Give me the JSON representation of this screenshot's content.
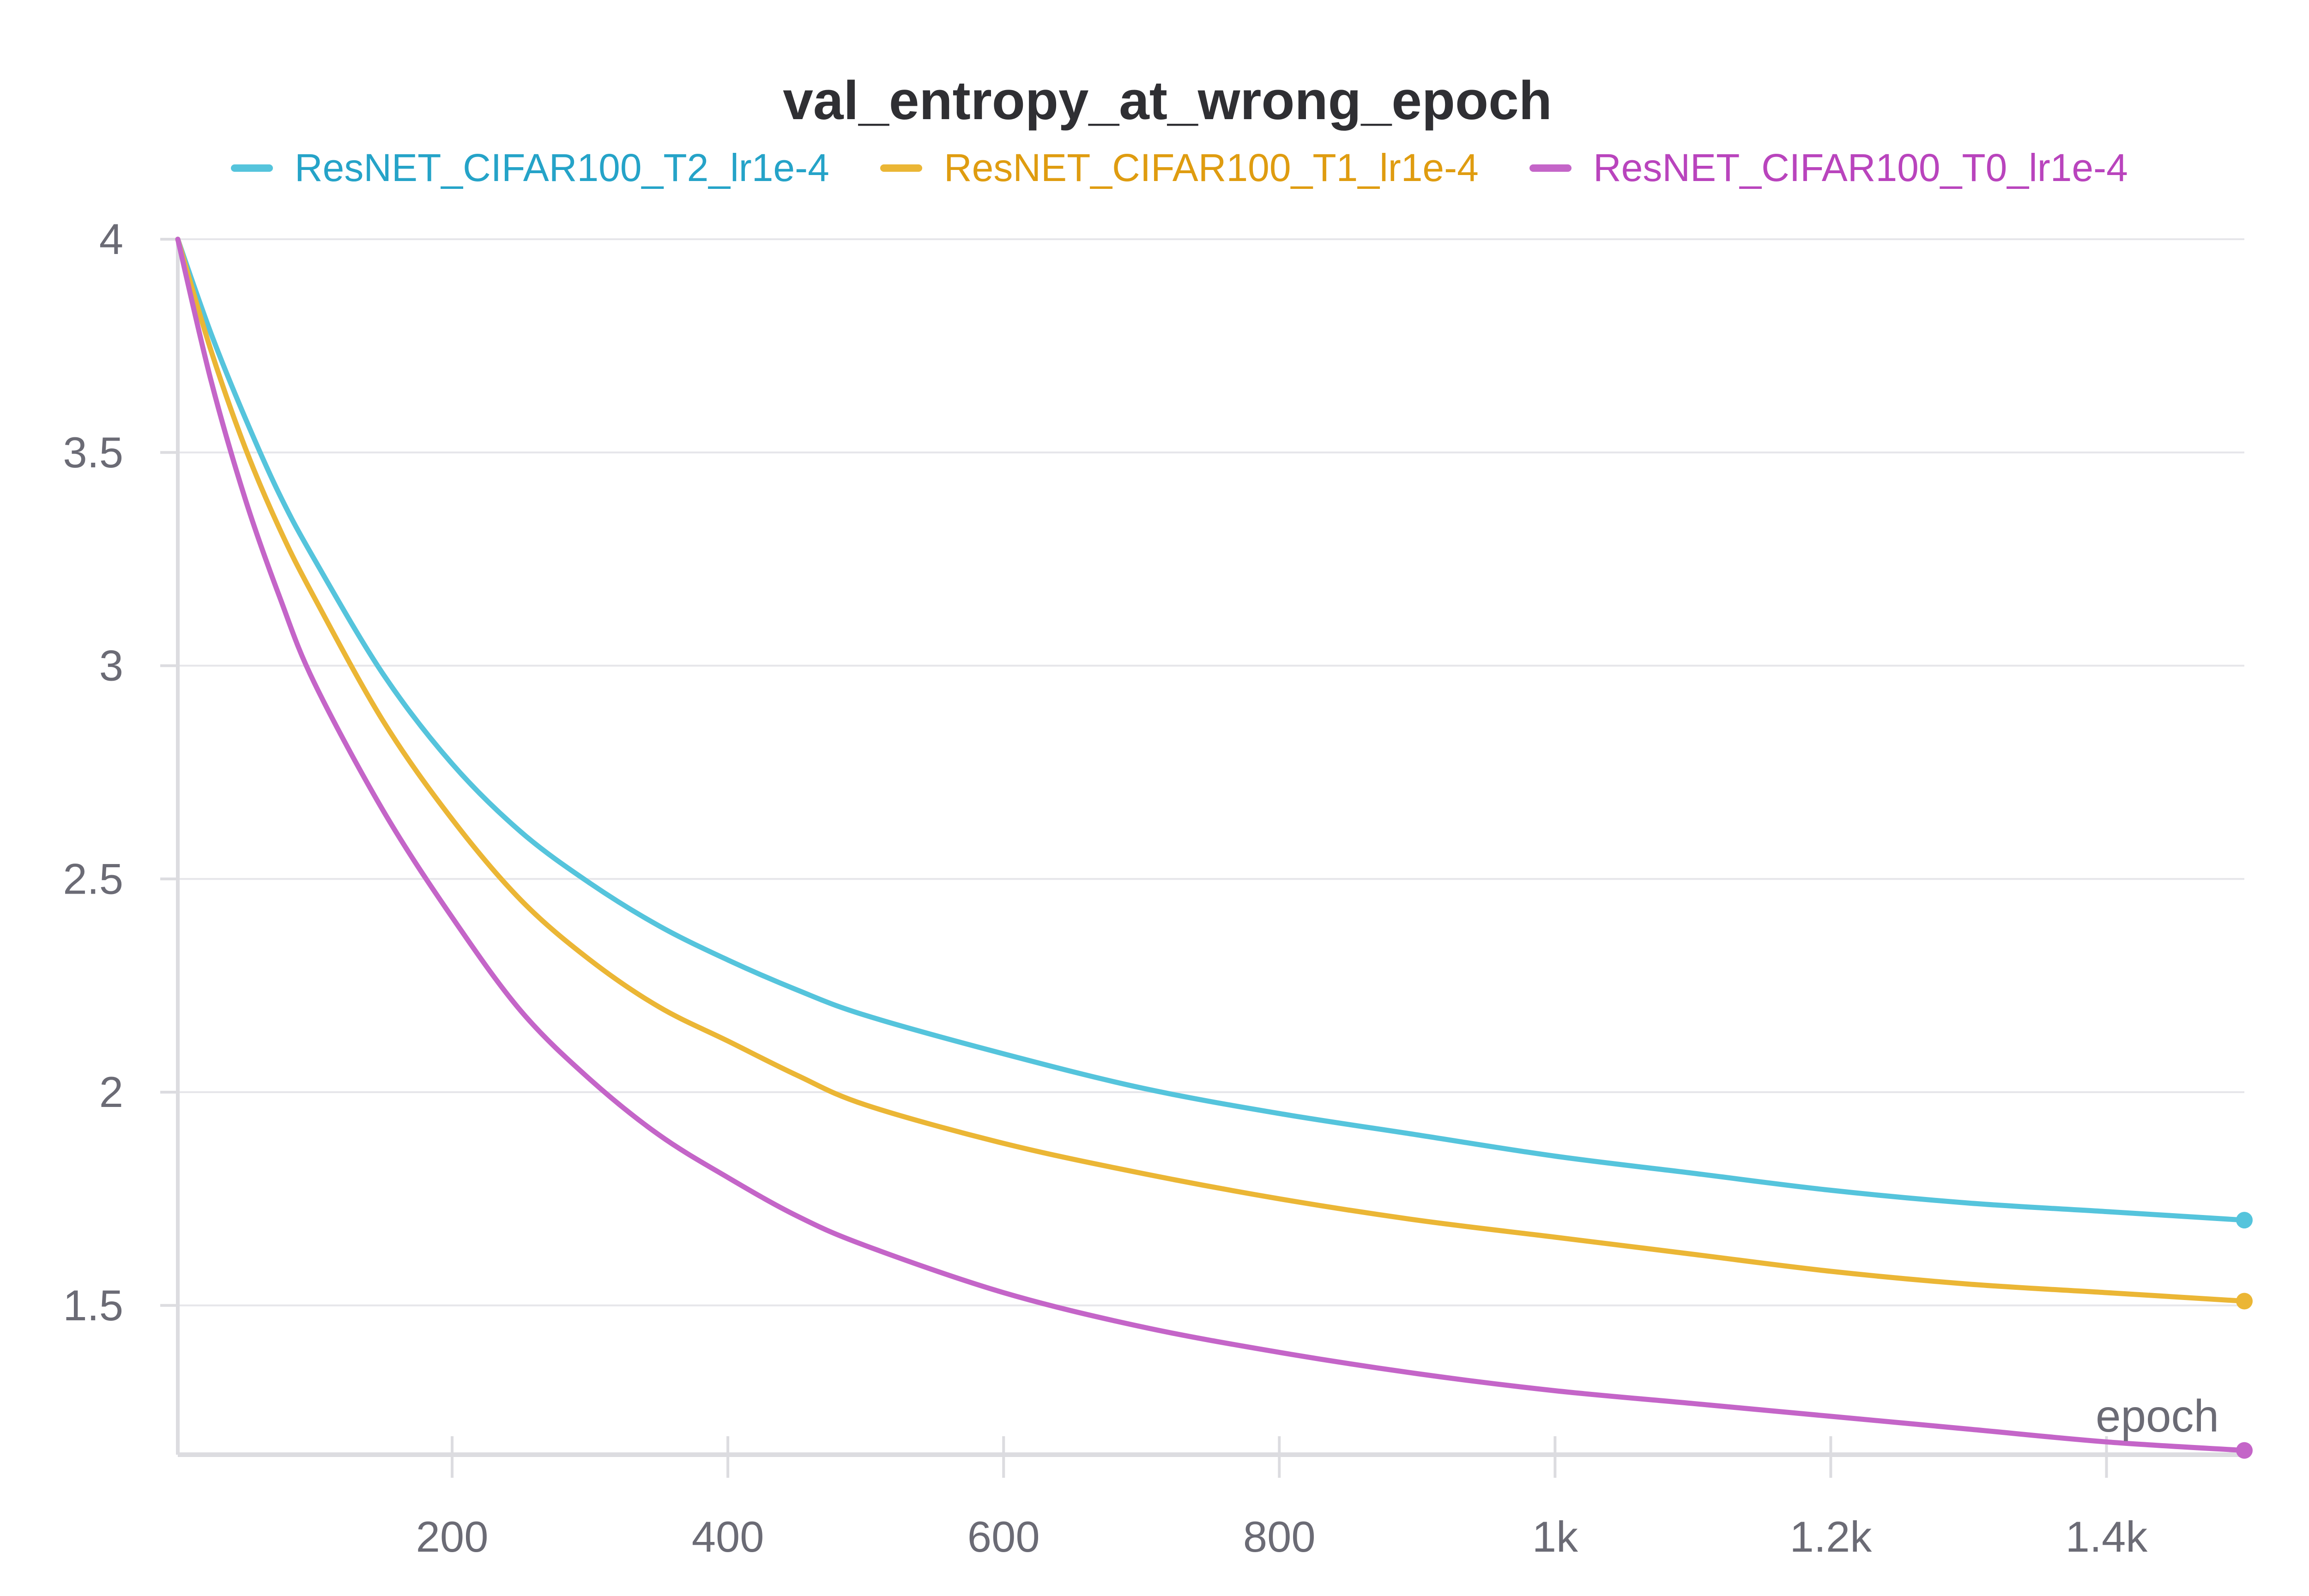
{
  "chart_data": {
    "type": "line",
    "title": "val_entropy_at_wrong_epoch",
    "xlabel": "epoch",
    "ylabel": "",
    "xlim": [
      1,
      1500
    ],
    "ylim": [
      1.15,
      4
    ],
    "x_ticks": [
      {
        "value": 200,
        "label": "200"
      },
      {
        "value": 400,
        "label": "400"
      },
      {
        "value": 600,
        "label": "600"
      },
      {
        "value": 800,
        "label": "800"
      },
      {
        "value": 1000,
        "label": "1k"
      },
      {
        "value": 1200,
        "label": "1.2k"
      },
      {
        "value": 1400,
        "label": "1.4k"
      }
    ],
    "y_ticks": [
      {
        "value": 4,
        "label": "4"
      },
      {
        "value": 3.5,
        "label": "3.5"
      },
      {
        "value": 3,
        "label": "3"
      },
      {
        "value": 2.5,
        "label": "2.5"
      },
      {
        "value": 2,
        "label": "2"
      },
      {
        "value": 1.5,
        "label": "1.5"
      }
    ],
    "grid": true,
    "legend_position": "top",
    "series": [
      {
        "name": "ResNET_CIFAR100_T2_lr1e-4",
        "color": "#55c4dc",
        "label_color": "#25a3c8",
        "x": [
          1,
          25,
          50,
          75,
          100,
          150,
          200,
          250,
          300,
          350,
          400,
          450,
          500,
          600,
          700,
          800,
          900,
          1000,
          1100,
          1200,
          1300,
          1400,
          1500
        ],
        "y": [
          4.0,
          3.78,
          3.58,
          3.4,
          3.25,
          2.98,
          2.77,
          2.61,
          2.49,
          2.39,
          2.31,
          2.24,
          2.18,
          2.09,
          2.01,
          1.95,
          1.9,
          1.85,
          1.81,
          1.77,
          1.74,
          1.72,
          1.7
        ]
      },
      {
        "name": "ResNET_CIFAR100_T1_lr1e-4",
        "color": "#ebb635",
        "label_color": "#df9c10",
        "x": [
          1,
          25,
          50,
          75,
          100,
          150,
          200,
          250,
          300,
          350,
          400,
          450,
          500,
          600,
          700,
          800,
          900,
          1000,
          1100,
          1200,
          1300,
          1400,
          1500
        ],
        "y": [
          4.0,
          3.74,
          3.51,
          3.32,
          3.16,
          2.87,
          2.64,
          2.45,
          2.31,
          2.2,
          2.12,
          2.04,
          1.97,
          1.88,
          1.81,
          1.75,
          1.7,
          1.66,
          1.62,
          1.58,
          1.55,
          1.53,
          1.51
        ]
      },
      {
        "name": "ResNET_CIFAR100_T0_lr1e-4",
        "color": "#c465c8",
        "label_color": "#b944bd",
        "x": [
          1,
          25,
          50,
          75,
          100,
          150,
          200,
          250,
          300,
          350,
          400,
          450,
          500,
          600,
          700,
          800,
          900,
          1000,
          1100,
          1200,
          1300,
          1400,
          1500
        ],
        "y": [
          4.0,
          3.67,
          3.39,
          3.16,
          2.96,
          2.66,
          2.41,
          2.19,
          2.03,
          1.9,
          1.8,
          1.71,
          1.64,
          1.53,
          1.45,
          1.39,
          1.34,
          1.3,
          1.27,
          1.24,
          1.21,
          1.18,
          1.16
        ]
      }
    ]
  }
}
